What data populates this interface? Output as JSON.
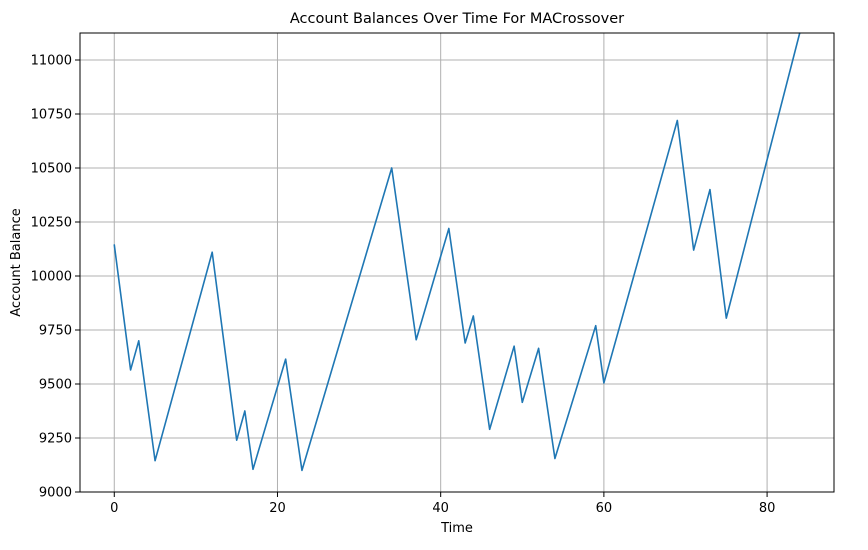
{
  "chart_data": {
    "type": "line",
    "title": "Account Balances Over Time For MACrossover",
    "xlabel": "Time",
    "ylabel": "Account Balance",
    "xlim": [
      -4.2,
      88.2
    ],
    "ylim": [
      9000,
      11125
    ],
    "xticks": [
      0,
      20,
      40,
      60,
      80
    ],
    "yticks": [
      9000,
      9250,
      9500,
      9750,
      10000,
      10250,
      10500,
      10750,
      11000
    ],
    "grid": true,
    "line_color": "#1f77b4",
    "series": [
      {
        "x": [
          0,
          2,
          3,
          5,
          12,
          15,
          16,
          17,
          21,
          23,
          34,
          37,
          41,
          43,
          44,
          46,
          49,
          50,
          52,
          54,
          59,
          60,
          69,
          71,
          73,
          75,
          84
        ],
        "y": [
          10145,
          9565,
          9700,
          9145,
          10110,
          9240,
          9375,
          9105,
          9615,
          9100,
          10500,
          9705,
          10220,
          9690,
          9815,
          9290,
          9675,
          9415,
          9665,
          9155,
          9770,
          9505,
          10720,
          10120,
          10400,
          9805,
          11125
        ]
      }
    ]
  }
}
